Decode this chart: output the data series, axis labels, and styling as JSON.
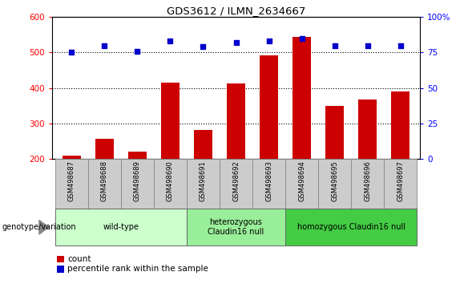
{
  "title": "GDS3612 / ILMN_2634667",
  "samples": [
    "GSM498687",
    "GSM498688",
    "GSM498689",
    "GSM498690",
    "GSM498691",
    "GSM498692",
    "GSM498693",
    "GSM498694",
    "GSM498695",
    "GSM498696",
    "GSM498697"
  ],
  "counts": [
    210,
    258,
    222,
    415,
    282,
    413,
    493,
    543,
    350,
    368,
    390
  ],
  "percentile_ranks": [
    75,
    80,
    76,
    83,
    79,
    82,
    83,
    85,
    80,
    80,
    80
  ],
  "bar_color": "#cc0000",
  "dot_color": "#0000cc",
  "ylim_left": [
    200,
    600
  ],
  "ylim_right": [
    0,
    100
  ],
  "yticks_left": [
    200,
    300,
    400,
    500,
    600
  ],
  "yticks_right": [
    0,
    25,
    50,
    75,
    100
  ],
  "groups": [
    {
      "label": "wild-type",
      "indices": [
        0,
        1,
        2,
        3
      ],
      "color": "#ccffcc"
    },
    {
      "label": "heterozygous\nClaudin16 null",
      "indices": [
        4,
        5,
        6
      ],
      "color": "#99ee99"
    },
    {
      "label": "homozygous Claudin16 null",
      "indices": [
        7,
        8,
        9,
        10
      ],
      "color": "#44cc44"
    }
  ],
  "group_label_prefix": "genotype/variation",
  "legend_count_label": "count",
  "legend_percentile_label": "percentile rank within the sample",
  "sample_box_color": "#cccccc",
  "sample_box_edge": "#888888",
  "background_color": "#ffffff"
}
